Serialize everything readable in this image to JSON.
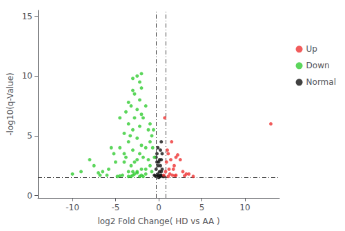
{
  "chart_data": {
    "type": "scatter",
    "xlabel": "log2 Fold Change( HD vs AA )",
    "ylabel": "-log10(q-Value)",
    "xlim": [
      -14,
      14
    ],
    "ylim": [
      -0.2,
      15.5
    ],
    "xticks": [
      -10,
      -5,
      0,
      5,
      10
    ],
    "yticks": [
      0,
      5,
      10,
      15
    ],
    "grid": false,
    "legend": "right",
    "marker": "circle",
    "reference_lines": {
      "color": "#444444",
      "line_style": "dashdot",
      "x": [
        -0.3,
        0.8
      ],
      "y": [
        1.5
      ]
    },
    "series": [
      {
        "name": "Up",
        "color": "#EE3333",
        "values": [
          [
            0.7,
            6.5
          ],
          [
            1.0,
            3.8
          ],
          [
            1.5,
            4.5
          ],
          [
            2.0,
            3.2
          ],
          [
            2.5,
            3.0
          ],
          [
            1.8,
            2.5
          ],
          [
            1.2,
            2.2
          ],
          [
            2.8,
            2.0
          ],
          [
            3.5,
            1.8
          ],
          [
            0.6,
            1.7
          ],
          [
            1.1,
            1.6
          ],
          [
            4.0,
            1.6
          ],
          [
            3.0,
            1.65
          ],
          [
            1.6,
            1.7
          ],
          [
            1.3,
            1.8
          ],
          [
            0.9,
            2.8
          ],
          [
            1.1,
            3.5
          ],
          [
            13.0,
            6.0
          ],
          [
            2.2,
            3.4
          ],
          [
            1.7,
            2.2
          ],
          [
            3.2,
            1.8
          ],
          [
            2.0,
            1.7
          ],
          [
            1.4,
            3.0
          ],
          [
            0.8,
            2.0
          ],
          [
            1.9,
            1.65
          ]
        ]
      },
      {
        "name": "Down",
        "color": "#33CC33",
        "values": [
          [
            -2.0,
            10.2
          ],
          [
            -2.5,
            10.0
          ],
          [
            -2.2,
            9.5
          ],
          [
            -3.0,
            8.8
          ],
          [
            -2.8,
            8.5
          ],
          [
            -3.5,
            7.8
          ],
          [
            -3.2,
            7.5
          ],
          [
            -2.5,
            7.2
          ],
          [
            -3.8,
            7.0
          ],
          [
            -2.0,
            6.8
          ],
          [
            -2.8,
            6.5
          ],
          [
            -3.5,
            6.0
          ],
          [
            -2.2,
            5.8
          ],
          [
            -3.0,
            5.5
          ],
          [
            -4.0,
            5.2
          ],
          [
            -2.5,
            4.8
          ],
          [
            -3.5,
            4.5
          ],
          [
            -2.0,
            4.2
          ],
          [
            -4.5,
            4.0
          ],
          [
            -3.0,
            3.8
          ],
          [
            -2.2,
            3.5
          ],
          [
            -3.8,
            3.2
          ],
          [
            -2.5,
            3.0
          ],
          [
            -4.0,
            2.8
          ],
          [
            -3.2,
            2.5
          ],
          [
            -2.0,
            2.2
          ],
          [
            -3.5,
            2.0
          ],
          [
            -1.5,
            1.8
          ],
          [
            -2.8,
            1.8
          ],
          [
            -4.2,
            1.7
          ],
          [
            -3.0,
            1.7
          ],
          [
            -2.2,
            1.6
          ],
          [
            -1.8,
            1.6
          ],
          [
            -0.8,
            2.0
          ],
          [
            -1.0,
            2.5
          ],
          [
            -1.2,
            3.0
          ],
          [
            -0.5,
            3.2
          ],
          [
            -1.5,
            4.0
          ],
          [
            -0.8,
            5.0
          ],
          [
            -1.0,
            6.0
          ],
          [
            -5.0,
            2.8
          ],
          [
            -6.0,
            1.7
          ],
          [
            -7.0,
            1.9
          ],
          [
            -8.0,
            3.0
          ],
          [
            -5.5,
            4.0
          ],
          [
            -4.5,
            6.5
          ],
          [
            -6.5,
            2.0
          ],
          [
            -9.0,
            2.0
          ],
          [
            -10.0,
            1.8
          ],
          [
            -4.8,
            1.6
          ],
          [
            -2.0,
            9.0
          ],
          [
            -1.5,
            7.5
          ],
          [
            -3.3,
            5.0
          ],
          [
            -5.2,
            3.5
          ],
          [
            -7.5,
            2.5
          ],
          [
            -3.0,
            2.0
          ],
          [
            -2.5,
            1.9
          ],
          [
            -1.0,
            4.5
          ],
          [
            -0.6,
            5.5
          ],
          [
            -1.8,
            3.2
          ],
          [
            -4.0,
            3.5
          ],
          [
            -5.8,
            2.2
          ],
          [
            -6.8,
            1.7
          ],
          [
            -3.5,
            1.6
          ],
          [
            -2.8,
            2.8
          ],
          [
            -2.0,
            1.7
          ],
          [
            -1.5,
            2.2
          ],
          [
            -2.5,
            2.0
          ],
          [
            -3.2,
            1.6
          ],
          [
            -4.5,
            1.65
          ],
          [
            -1.2,
            5.5
          ],
          [
            -0.7,
            4.0
          ],
          [
            -1.8,
            6.5
          ],
          [
            -2.2,
            8.0
          ],
          [
            -3.0,
            9.8
          ]
        ]
      },
      {
        "name": "Normal",
        "color": "#111111",
        "values": [
          [
            -0.2,
            1.6
          ],
          [
            0.1,
            1.6
          ],
          [
            0.2,
            1.7
          ],
          [
            -0.1,
            1.8
          ],
          [
            0.3,
            2.0
          ],
          [
            -0.3,
            2.2
          ],
          [
            0.2,
            2.5
          ],
          [
            -0.2,
            2.8
          ],
          [
            0.1,
            3.0
          ],
          [
            0.4,
            3.5
          ],
          [
            -0.1,
            4.0
          ],
          [
            0.3,
            4.5
          ],
          [
            0.0,
            1.55
          ],
          [
            -0.4,
            1.65
          ],
          [
            0.5,
            1.6
          ],
          [
            0.2,
            3.8
          ],
          [
            -0.3,
            3.2
          ],
          [
            0.4,
            2.2
          ],
          [
            0.0,
            2.8
          ],
          [
            -0.2,
            3.5
          ],
          [
            0.3,
            1.7
          ],
          [
            0.6,
            1.6
          ],
          [
            -0.5,
            1.7
          ],
          [
            0.1,
            2.0
          ],
          [
            -0.1,
            1.65
          ],
          [
            0.0,
            1.5
          ],
          [
            0.2,
            1.6
          ],
          [
            -0.1,
            2.5
          ],
          [
            0.3,
            3.0
          ]
        ]
      }
    ]
  }
}
